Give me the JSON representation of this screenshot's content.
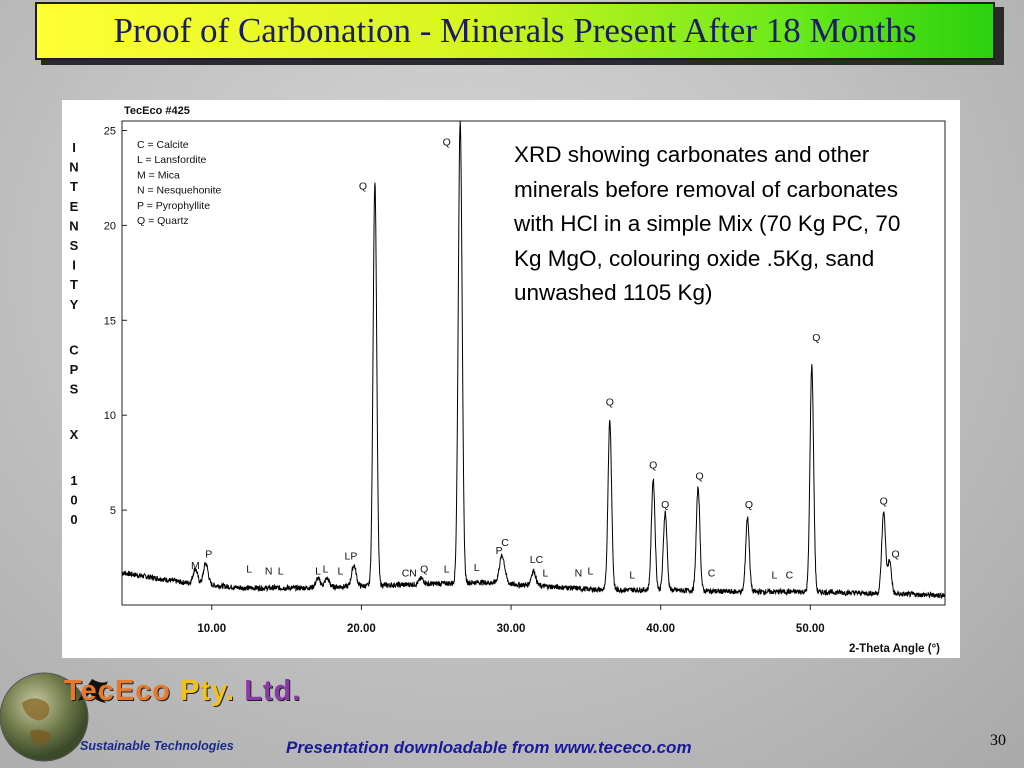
{
  "slide": {
    "title": "Proof of Carbonation - Minerals Present After 18 Months",
    "caption": "XRD showing carbonates and other minerals before removal of carbonates with HCl in a simple Mix (70 Kg PC, 70 Kg MgO, colouring oxide .5Kg, sand unwashed 1105 Kg)",
    "footer": "Presentation downloadable from www.tececo.com",
    "page_number": "30"
  },
  "logo": {
    "brand_a": "TecEco",
    "brand_b": "Pty.",
    "brand_c": "Ltd.",
    "tagline": "Sustainable Technologies"
  },
  "colors": {
    "title_text": "#1b1b66",
    "footer_text": "#1a1a99",
    "trace": "#000000"
  },
  "chart_data": {
    "type": "line",
    "title": "TecEco #425",
    "xlabel": "2-Theta Angle (°)",
    "ylabel": "INTENSITY CPS X 100",
    "xlim": [
      4.0,
      59.0
    ],
    "ylim": [
      0,
      25.5
    ],
    "xticks": [
      10,
      20,
      30,
      40,
      50
    ],
    "xtick_labels": [
      "10.00",
      "20.00",
      "30.00",
      "40.00",
      "50.00"
    ],
    "yticks": [
      5,
      10,
      15,
      20,
      25
    ],
    "ytick_labels": [
      "5",
      "10",
      "15",
      "20",
      "25"
    ],
    "grid": false,
    "legend_position": "top-left",
    "legend": [
      "C = Calcite",
      "L = Lansfordite",
      "M = Mica",
      "N = Nesquehonite",
      "P = Pyrophyllite",
      "Q = Quartz"
    ],
    "baseline": [
      [
        4.0,
        1.7
      ],
      [
        8.0,
        1.2
      ],
      [
        12.0,
        0.9
      ],
      [
        16.0,
        0.9
      ],
      [
        20.0,
        1.0
      ],
      [
        24.0,
        1.1
      ],
      [
        28.0,
        1.2
      ],
      [
        32.0,
        1.0
      ],
      [
        36.0,
        0.8
      ],
      [
        40.0,
        0.8
      ],
      [
        45.0,
        0.7
      ],
      [
        50.0,
        0.7
      ],
      [
        55.0,
        0.6
      ],
      [
        59.0,
        0.5
      ]
    ],
    "peaks": [
      {
        "x": 8.9,
        "y": 1.9,
        "w": 0.15
      },
      {
        "x": 9.6,
        "y": 2.2,
        "w": 0.15
      },
      {
        "x": 17.1,
        "y": 1.4,
        "w": 0.15
      },
      {
        "x": 17.7,
        "y": 1.4,
        "w": 0.15
      },
      {
        "x": 19.5,
        "y": 2.1,
        "w": 0.15
      },
      {
        "x": 20.9,
        "y": 22.3,
        "w": 0.12
      },
      {
        "x": 24.0,
        "y": 1.4,
        "w": 0.15
      },
      {
        "x": 26.6,
        "y": 25.5,
        "w": 0.13
      },
      {
        "x": 29.4,
        "y": 2.6,
        "w": 0.18
      },
      {
        "x": 31.5,
        "y": 1.8,
        "w": 0.15
      },
      {
        "x": 36.6,
        "y": 9.7,
        "w": 0.12
      },
      {
        "x": 39.5,
        "y": 6.6,
        "w": 0.12
      },
      {
        "x": 40.3,
        "y": 4.9,
        "w": 0.12
      },
      {
        "x": 42.5,
        "y": 6.2,
        "w": 0.12
      },
      {
        "x": 45.8,
        "y": 4.6,
        "w": 0.12
      },
      {
        "x": 50.1,
        "y": 12.6,
        "w": 0.12
      },
      {
        "x": 54.9,
        "y": 4.9,
        "w": 0.13
      },
      {
        "x": 55.3,
        "y": 2.3,
        "w": 0.12
      }
    ],
    "annotations": [
      {
        "text": "Q",
        "x": 20.1,
        "y": 21.9
      },
      {
        "text": "Q",
        "x": 25.7,
        "y": 24.2
      },
      {
        "text": "Q",
        "x": 36.6,
        "y": 10.5
      },
      {
        "text": "Q",
        "x": 39.5,
        "y": 7.2
      },
      {
        "text": "Q",
        "x": 40.3,
        "y": 5.1
      },
      {
        "text": "Q",
        "x": 42.6,
        "y": 6.6
      },
      {
        "text": "Q",
        "x": 45.9,
        "y": 5.1
      },
      {
        "text": "Q",
        "x": 50.4,
        "y": 13.9
      },
      {
        "text": "Q",
        "x": 54.9,
        "y": 5.3
      },
      {
        "text": "Q",
        "x": 55.7,
        "y": 2.5
      },
      {
        "text": "P",
        "x": 9.8,
        "y": 2.5
      },
      {
        "text": "M",
        "x": 8.9,
        "y": 1.9
      },
      {
        "text": "L",
        "x": 12.5,
        "y": 1.7
      },
      {
        "text": "N",
        "x": 13.8,
        "y": 1.6
      },
      {
        "text": "L",
        "x": 14.6,
        "y": 1.6
      },
      {
        "text": "L",
        "x": 17.1,
        "y": 1.6
      },
      {
        "text": "L",
        "x": 17.6,
        "y": 1.7
      },
      {
        "text": "L",
        "x": 18.6,
        "y": 1.6
      },
      {
        "text": "LP",
        "x": 19.3,
        "y": 2.4
      },
      {
        "text": "CN",
        "x": 23.2,
        "y": 1.5
      },
      {
        "text": "Q",
        "x": 24.2,
        "y": 1.7
      },
      {
        "text": "L",
        "x": 25.7,
        "y": 1.7
      },
      {
        "text": "L",
        "x": 27.7,
        "y": 1.8
      },
      {
        "text": "C",
        "x": 29.6,
        "y": 3.1
      },
      {
        "text": "P",
        "x": 29.2,
        "y": 2.7
      },
      {
        "text": "LC",
        "x": 31.7,
        "y": 2.2
      },
      {
        "text": "L",
        "x": 32.3,
        "y": 1.5
      },
      {
        "text": "N",
        "x": 34.5,
        "y": 1.5
      },
      {
        "text": "L",
        "x": 35.3,
        "y": 1.6
      },
      {
        "text": "L",
        "x": 38.1,
        "y": 1.4
      },
      {
        "text": "C",
        "x": 43.4,
        "y": 1.5
      },
      {
        "text": "L",
        "x": 47.6,
        "y": 1.4
      },
      {
        "text": "C",
        "x": 48.6,
        "y": 1.4
      }
    ]
  }
}
